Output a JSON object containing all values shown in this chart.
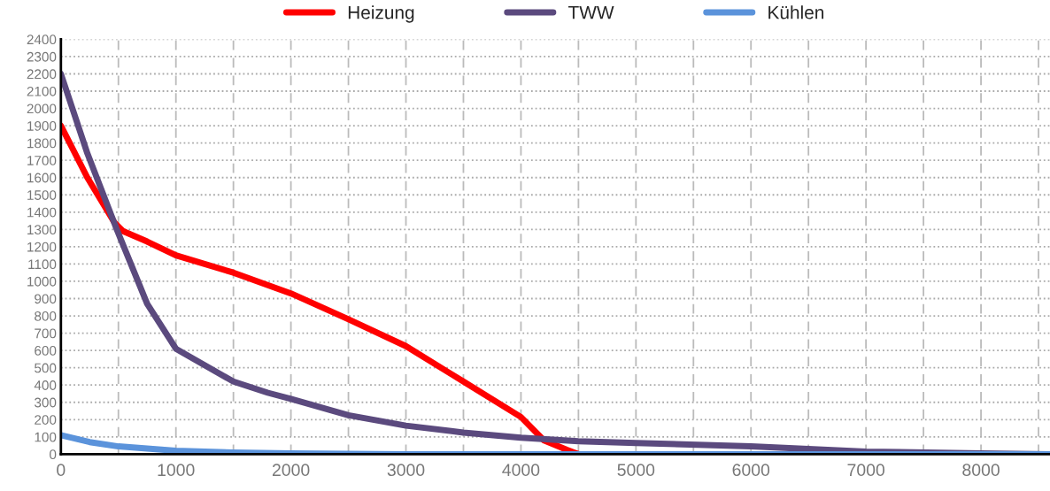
{
  "chart_data": {
    "type": "line",
    "legend": "top",
    "grid": true,
    "marker": "none",
    "line_style": "solid",
    "xlim": [
      0,
      8600
    ],
    "ylim": [
      0,
      2400
    ],
    "xticks": [
      0,
      {
        "value": 500,
        "label": null
      },
      1000,
      {
        "value": 1500,
        "label": null
      },
      2000,
      {
        "value": 2500,
        "label": null
      },
      3000,
      {
        "value": 3500,
        "label": null
      },
      4000,
      {
        "value": 4500,
        "label": null
      },
      5000,
      {
        "value": 5500,
        "label": null
      },
      6000,
      {
        "value": 6500,
        "label": null
      },
      7000,
      {
        "value": 7500,
        "label": null
      },
      8000,
      {
        "value": 8500,
        "label": null
      }
    ],
    "yticks": [
      0,
      100,
      200,
      300,
      400,
      500,
      600,
      700,
      800,
      900,
      1000,
      1100,
      1200,
      1300,
      1400,
      1500,
      1600,
      1700,
      1800,
      1900,
      2000,
      2100,
      2200,
      2300,
      2400
    ],
    "series": [
      {
        "name": "Heizung",
        "color": "#ff0000",
        "x": [
          0,
          230,
          465,
          540,
          750,
          1000,
          1500,
          2000,
          2500,
          3000,
          3500,
          4000,
          4200,
          4400,
          4500,
          8600
        ],
        "values": [
          1900,
          1600,
          1340,
          1290,
          1230,
          1150,
          1050,
          930,
          780,
          625,
          420,
          215,
          80,
          25,
          0,
          0
        ]
      },
      {
        "name": "TWW",
        "color": "#5b4a7e",
        "x": [
          0,
          230,
          480,
          750,
          1000,
          1500,
          1800,
          2000,
          2500,
          3000,
          3500,
          4000,
          4500,
          5000,
          6000,
          7000,
          8000,
          8600
        ],
        "values": [
          2200,
          1740,
          1310,
          870,
          610,
          420,
          355,
          320,
          225,
          165,
          125,
          95,
          75,
          65,
          45,
          15,
          5,
          0
        ]
      },
      {
        "name": "Kühlen",
        "color": "#5b93db",
        "x": [
          0,
          250,
          500,
          1000,
          1500,
          2000,
          3000,
          8600
        ],
        "values": [
          110,
          70,
          45,
          20,
          10,
          5,
          0,
          0
        ]
      }
    ]
  }
}
